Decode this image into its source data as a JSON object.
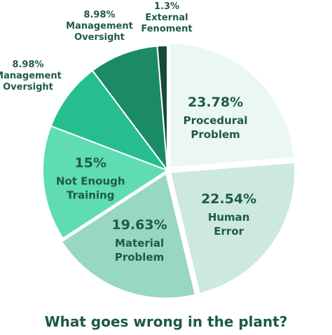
{
  "chart_data": {
    "type": "pie",
    "title": "What goes wrong in the plant?",
    "slices": [
      {
        "percent_label": "23.78%",
        "name_lines": [
          "Procedural",
          "Problem"
        ],
        "value": 23.78,
        "color": "#ebf7f3",
        "text_color": "#1f5b45"
      },
      {
        "percent_label": "22.54%",
        "name_lines": [
          "Human",
          "Error"
        ],
        "value": 22.54,
        "color": "#cce8df",
        "text_color": "#1f5b45"
      },
      {
        "percent_label": "19.63%",
        "name_lines": [
          "Material",
          "Problem"
        ],
        "value": 19.63,
        "color": "#98d7c1",
        "text_color": "#1f5b45"
      },
      {
        "percent_label": "15%",
        "name_lines": [
          "Not Enough",
          "Training"
        ],
        "value": 15.0,
        "color": "#5fdcb3",
        "text_color": "#1f5b45"
      },
      {
        "percent_label": "8.98%",
        "name_lines": [
          "Management",
          "Oversight"
        ],
        "value": 8.98,
        "color": "#26be8e",
        "text_color": "#1f5b45"
      },
      {
        "percent_label": "8.98%",
        "name_lines": [
          "Management",
          "Oversight"
        ],
        "value": 8.98,
        "color": "#1b8a66",
        "text_color": "#1f5b45"
      },
      {
        "percent_label": "1.3%",
        "name_lines": [
          "External",
          "Fenoment"
        ],
        "value": 1.3,
        "color": "#154b37",
        "text_color": "#1f5b45"
      }
    ]
  },
  "colors": {
    "title": "#1d5a3f",
    "label": "#1f5b45"
  }
}
